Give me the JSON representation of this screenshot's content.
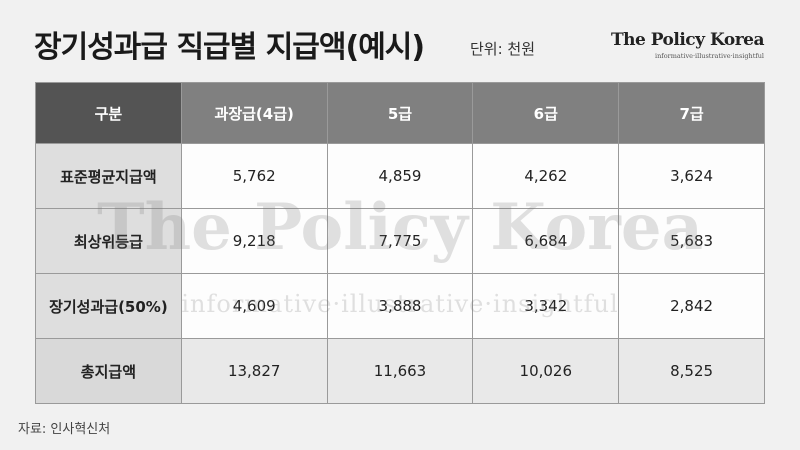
{
  "header": {
    "title": "장기성과급 직급별 지급액(예시)",
    "unit": "단위: 천원",
    "brand": "The Policy Korea",
    "tagline": "informative·illustrative·insightful"
  },
  "table": {
    "columns": [
      "구분",
      "과장급(4급)",
      "5급",
      "6급",
      "7급"
    ],
    "rows": [
      [
        "표준평균지급액",
        "5,762",
        "4,859",
        "4,262",
        "3,624"
      ],
      [
        "최상위등급",
        "9,218",
        "7,775",
        "6,684",
        "5,683"
      ],
      [
        "장기성과급(50%)",
        "4,609",
        "3,888",
        "3,342",
        "2,842"
      ],
      [
        "총지급액",
        "13,827",
        "11,663",
        "10,026",
        "8,525"
      ]
    ]
  },
  "footer": {
    "source": "자료: 인사혁신처"
  }
}
